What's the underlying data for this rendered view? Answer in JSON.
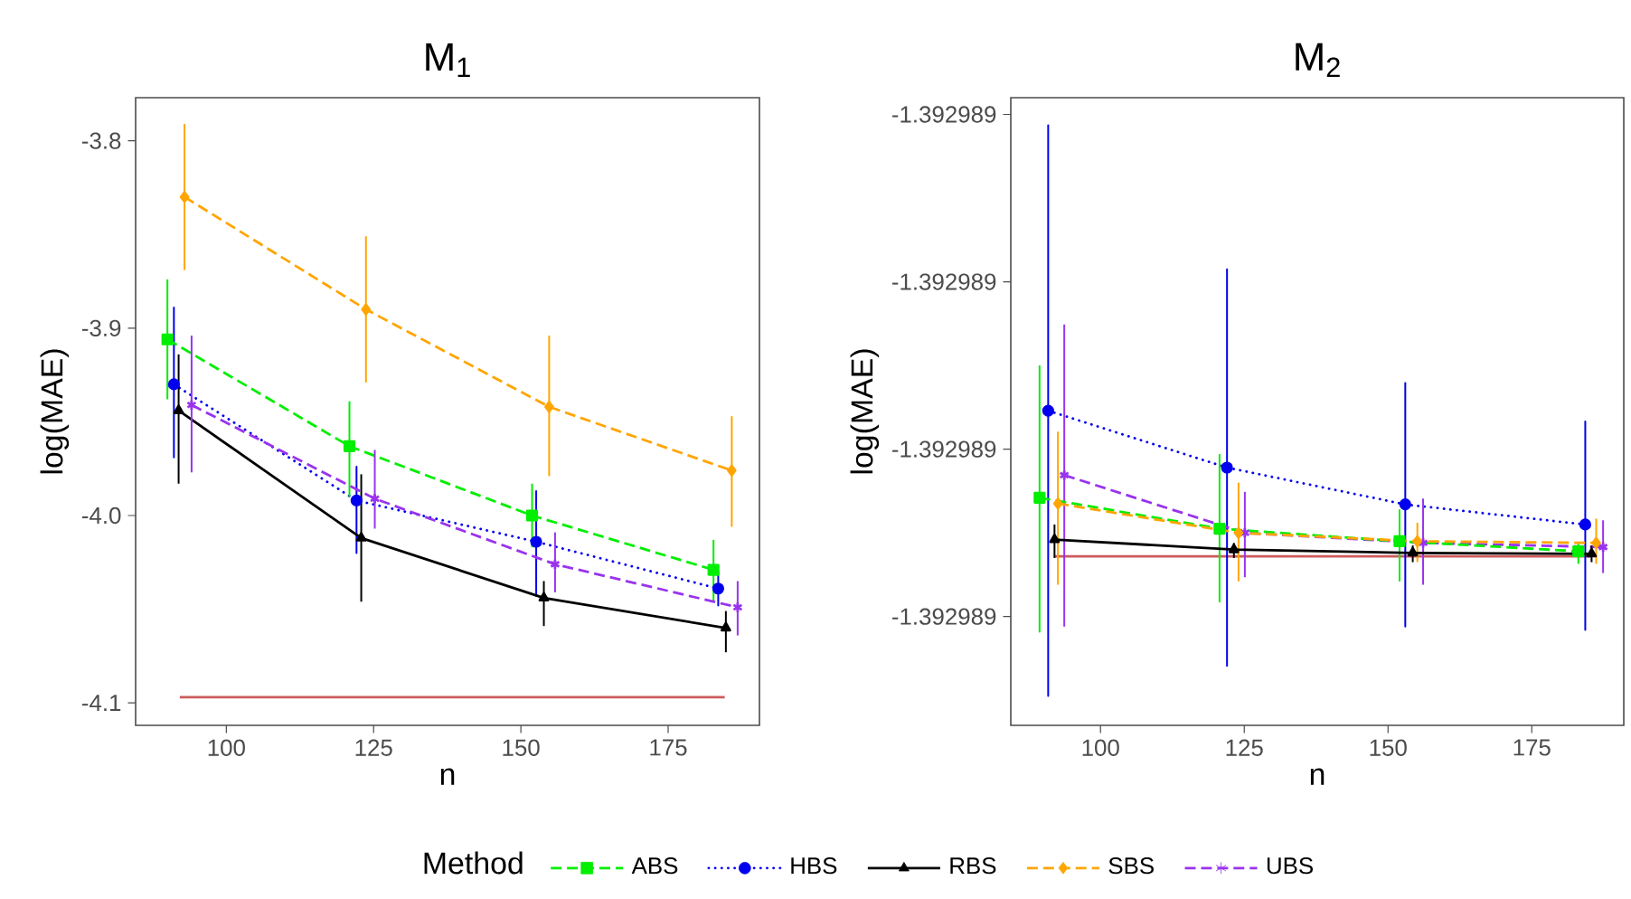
{
  "chart_data": [
    {
      "type": "line",
      "title": "M$_{1}$",
      "xlabel": "n",
      "ylabel": "log(MAE)",
      "xlim": [
        84.6,
        190.5
      ],
      "ylim": [
        -4.112,
        -3.777
      ],
      "xticks": [
        100,
        125,
        150,
        175
      ],
      "yticks": [
        {
          "value": -4.1,
          "label": "-4.1"
        },
        {
          "value": -4.0,
          "label": "-4.0"
        },
        {
          "value": -3.9,
          "label": "-3.9"
        },
        {
          "value": -3.8,
          "label": "-3.8"
        }
      ],
      "legend": "bottom",
      "legend_title": "Method",
      "series": [
        {
          "name": "ABS",
          "color": "#00ee00",
          "marker": "square",
          "line_style": "dashed",
          "x": [
            90.0,
            120.9,
            151.9,
            182.7
          ],
          "values": [
            -3.906,
            -3.963,
            -4.0,
            -4.029
          ],
          "errors": [
            [
              -3.938,
              -3.874
            ],
            [
              -3.99,
              -3.939
            ],
            [
              -4.017,
              -3.983
            ],
            [
              -4.046,
              -4.013
            ]
          ]
        },
        {
          "name": "HBS",
          "color": "#0000ee",
          "marker": "circle",
          "line_style": "dotted",
          "x": [
            91.1,
            122.1,
            152.6,
            183.5
          ],
          "values": [
            -3.93,
            -3.992,
            -4.014,
            -4.039
          ],
          "errors": [
            [
              -3.969,
              -3.889
            ],
            [
              -4.02,
              -3.974
            ],
            [
              -4.043,
              -3.987
            ],
            [
              -4.048,
              -4.03
            ]
          ]
        },
        {
          "name": "RBS",
          "color": "#000000",
          "marker": "triangle",
          "line_style": "solid",
          "x": [
            91.9,
            122.9,
            153.9,
            184.8
          ],
          "values": [
            -3.944,
            -4.012,
            -4.044,
            -4.06
          ],
          "errors": [
            [
              -3.983,
              -3.914
            ],
            [
              -4.046,
              -3.978
            ],
            [
              -4.059,
              -4.035
            ],
            [
              -4.073,
              -4.051
            ]
          ]
        },
        {
          "name": "SBS",
          "color": "#ffa500",
          "marker": "diamond",
          "line_style": "dashed",
          "x": [
            92.9,
            123.7,
            154.8,
            185.8
          ],
          "values": [
            -3.83,
            -3.89,
            -3.942,
            -3.976
          ],
          "errors": [
            [
              -3.869,
              -3.791
            ],
            [
              -3.929,
              -3.851
            ],
            [
              -3.979,
              -3.904
            ],
            [
              -4.006,
              -3.947
            ]
          ]
        },
        {
          "name": "UBS",
          "color": "#9933ee",
          "marker": "cross",
          "line_style": "dashed",
          "x": [
            94.1,
            125.2,
            155.8,
            186.8
          ],
          "values": [
            -3.941,
            -3.991,
            -4.026,
            -4.049
          ],
          "errors": [
            [
              -3.977,
              -3.904
            ],
            [
              -4.007,
              -3.965
            ],
            [
              -4.041,
              -4.009
            ],
            [
              -4.064,
              -4.035
            ]
          ]
        },
        {
          "type": "line",
          "color": "#cd5c5c",
          "marker": "none",
          "line_style": "solid",
          "x": [
            92.1,
            184.6
          ],
          "values": [
            -4.097,
            -4.097
          ]
        }
      ]
    },
    {
      "type": "line",
      "title": "M$_{2}$",
      "xlabel": "n",
      "ylabel": "log(MAE)",
      "xlim": [
        84.4,
        191.0
      ],
      "ylim": [
        -1.39298933,
        -1.39298858
      ],
      "xticks": [
        100,
        125,
        150,
        175
      ],
      "yticks": [
        {
          "value": -1.3929892,
          "label": "-1.392989"
        },
        {
          "value": -1.392989,
          "label": "-1.392989"
        },
        {
          "value": -1.3929888,
          "label": "-1.392989"
        },
        {
          "value": -1.3929886,
          "label": "-1.392989"
        }
      ],
      "series": [
        {
          "color": "#00ee00",
          "marker": "square",
          "line_style": "dashed",
          "x": [
            89.4,
            120.7,
            152.0,
            183.1
          ],
          "values": [
            -1.392989058,
            -1.392989095,
            -1.39298911,
            -1.392989122
          ],
          "errors": [
            [
              -1.392989219,
              -1.3929889
            ],
            [
              -1.392989183,
              -1.392989006
            ],
            [
              -1.392989158,
              -1.392989072
            ],
            [
              -1.392989137,
              -1.392989112
            ]
          ]
        },
        {
          "color": "#0000ee",
          "marker": "circle",
          "line_style": "dotted",
          "x": [
            90.9,
            122.0,
            153.0,
            184.3
          ],
          "values": [
            -1.392988954,
            -1.392989022,
            -1.392989066,
            -1.39298909
          ],
          "errors": [
            [
              -1.392989295,
              -1.392988613
            ],
            [
              -1.392989259,
              -1.392988785
            ],
            [
              -1.392989212,
              -1.392988921
            ],
            [
              -1.392989216,
              -1.392988967
            ]
          ]
        },
        {
          "color": "#000000",
          "marker": "triangle",
          "line_style": "solid",
          "x": [
            92.0,
            123.2,
            154.3,
            185.4
          ],
          "values": [
            -1.392989108,
            -1.39298912,
            -1.392989124,
            -1.392989125
          ],
          "errors": [
            [
              -1.39298913,
              -1.39298909
            ],
            [
              -1.39298913,
              -1.392989112
            ],
            [
              -1.392989135,
              -1.392989115
            ],
            [
              -1.392989135,
              -1.392989115
            ]
          ]
        },
        {
          "color": "#ffa500",
          "marker": "diamond",
          "line_style": "dashed",
          "x": [
            92.6,
            124.0,
            155.1,
            186.2
          ],
          "values": [
            -1.392989065,
            -1.3929891,
            -1.39298911,
            -1.392989112
          ],
          "errors": [
            [
              -1.392989162,
              -1.392988979
            ],
            [
              -1.392989158,
              -1.39298904
            ],
            [
              -1.392989135,
              -1.392989088
            ],
            [
              -1.392989137,
              -1.392989083
            ]
          ]
        },
        {
          "color": "#9933ee",
          "marker": "cross",
          "line_style": "dashed",
          "x": [
            93.7,
            125.1,
            156.1,
            187.4
          ],
          "values": [
            -1.392989031,
            -1.3929891,
            -1.392989112,
            -1.392989117
          ],
          "errors": [
            [
              -1.392989212,
              -1.392988851
            ],
            [
              -1.392989153,
              -1.392989051
            ],
            [
              -1.392989162,
              -1.392989059
            ],
            [
              -1.392989148,
              -1.392989085
            ]
          ]
        },
        {
          "type": "line",
          "color": "#cd5c5c",
          "marker": "none",
          "line_style": "solid",
          "x": [
            92.0,
            185.2
          ],
          "values": [
            -1.392989128,
            -1.392989128
          ]
        }
      ]
    }
  ]
}
